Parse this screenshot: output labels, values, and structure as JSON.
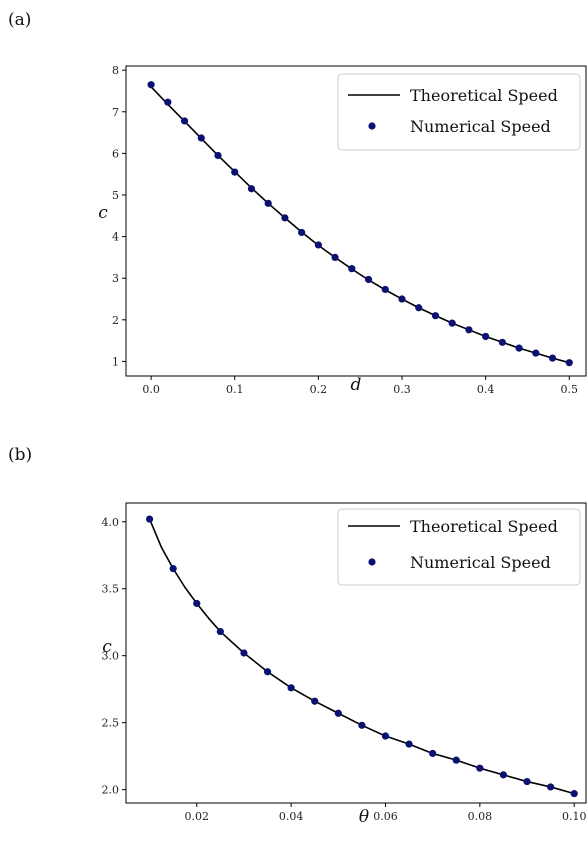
{
  "chart_data": [
    {
      "panel_label": "(a)",
      "type": "line+scatter",
      "xlabel": "d",
      "ylabel": "c",
      "xlim": [
        -0.03,
        0.52
      ],
      "ylim": [
        0.65,
        8.1
      ],
      "xticks": [
        0.0,
        0.1,
        0.2,
        0.3,
        0.4,
        0.5
      ],
      "xtick_labels": [
        "0.0",
        "0.1",
        "0.2",
        "0.3",
        "0.4",
        "0.5"
      ],
      "yticks": [
        1,
        2,
        3,
        4,
        5,
        6,
        7,
        8
      ],
      "ytick_labels": [
        "1",
        "2",
        "3",
        "4",
        "5",
        "6",
        "7",
        "8"
      ],
      "legend_position": "top-right",
      "legend": [
        "Theoretical Speed",
        "Numerical Speed"
      ],
      "series": [
        {
          "name": "Theoretical Speed",
          "style": "line",
          "color": "#000000",
          "x": [
            0.0,
            0.02,
            0.04,
            0.06,
            0.08,
            0.1,
            0.12,
            0.14,
            0.16,
            0.18,
            0.2,
            0.22,
            0.24,
            0.26,
            0.28,
            0.3,
            0.32,
            0.34,
            0.36,
            0.38,
            0.4,
            0.42,
            0.44,
            0.46,
            0.48,
            0.5
          ],
          "y": [
            7.6,
            7.18,
            6.77,
            6.36,
            5.95,
            5.56,
            5.17,
            4.8,
            4.45,
            4.11,
            3.79,
            3.5,
            3.22,
            2.96,
            2.72,
            2.5,
            2.29,
            2.1,
            1.92,
            1.76,
            1.6,
            1.46,
            1.32,
            1.2,
            1.08,
            0.97
          ]
        },
        {
          "name": "Numerical Speed",
          "style": "scatter",
          "color": "#0b1170",
          "x": [
            0.0,
            0.02,
            0.04,
            0.06,
            0.08,
            0.1,
            0.12,
            0.14,
            0.16,
            0.18,
            0.2,
            0.22,
            0.24,
            0.26,
            0.28,
            0.3,
            0.32,
            0.34,
            0.36,
            0.38,
            0.4,
            0.42,
            0.44,
            0.46,
            0.48,
            0.5
          ],
          "y": [
            7.65,
            7.23,
            6.78,
            6.37,
            5.95,
            5.55,
            5.15,
            4.8,
            4.45,
            4.1,
            3.8,
            3.5,
            3.23,
            2.97,
            2.73,
            2.5,
            2.29,
            2.1,
            1.92,
            1.76,
            1.6,
            1.46,
            1.32,
            1.2,
            1.08,
            0.97
          ]
        }
      ]
    },
    {
      "panel_label": "(b)",
      "type": "line+scatter",
      "xlabel": "θ",
      "ylabel": "c",
      "xlim": [
        0.005,
        0.1025
      ],
      "ylim": [
        1.9,
        4.14
      ],
      "xticks": [
        0.02,
        0.04,
        0.06,
        0.08,
        0.1
      ],
      "xtick_labels": [
        "0.02",
        "0.04",
        "0.06",
        "0.08",
        "0.10"
      ],
      "yticks": [
        2.0,
        2.5,
        3.0,
        3.5,
        4.0
      ],
      "ytick_labels": [
        "2.0",
        "2.5",
        "3.0",
        "3.5",
        "4.0"
      ],
      "legend_position": "top-right",
      "legend": [
        "Theoretical Speed",
        "Numerical Speed"
      ],
      "series": [
        {
          "name": "Theoretical Speed",
          "style": "line",
          "color": "#000000",
          "x": [
            0.01,
            0.0125,
            0.015,
            0.0175,
            0.02,
            0.0225,
            0.025,
            0.0275,
            0.03,
            0.035,
            0.04,
            0.045,
            0.05,
            0.055,
            0.06,
            0.065,
            0.07,
            0.075,
            0.08,
            0.085,
            0.09,
            0.095,
            0.1
          ],
          "y": [
            4.02,
            3.81,
            3.65,
            3.51,
            3.39,
            3.28,
            3.18,
            3.1,
            3.02,
            2.88,
            2.76,
            2.66,
            2.57,
            2.48,
            2.4,
            2.34,
            2.27,
            2.22,
            2.16,
            2.11,
            2.06,
            2.02,
            1.97
          ]
        },
        {
          "name": "Numerical Speed",
          "style": "scatter",
          "color": "#0b1170",
          "x": [
            0.01,
            0.015,
            0.02,
            0.025,
            0.03,
            0.035,
            0.04,
            0.045,
            0.05,
            0.055,
            0.06,
            0.065,
            0.07,
            0.075,
            0.08,
            0.085,
            0.09,
            0.095,
            0.1
          ],
          "y": [
            4.02,
            3.65,
            3.39,
            3.18,
            3.02,
            2.88,
            2.76,
            2.66,
            2.57,
            2.48,
            2.4,
            2.34,
            2.27,
            2.22,
            2.16,
            2.11,
            2.06,
            2.02,
            1.97
          ]
        }
      ]
    }
  ]
}
